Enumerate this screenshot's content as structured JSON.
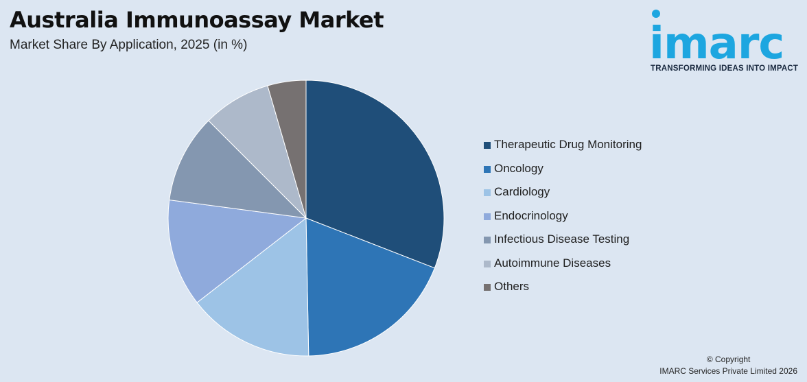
{
  "header": {
    "title": "Australia Immunoassay Market",
    "subtitle": "Market Share By Application, 2025 (in %)"
  },
  "logo": {
    "wordmark": "imarc",
    "tagline": "TRANSFORMING IDEAS INTO IMPACT",
    "color": "#1da6e0"
  },
  "chart_data": {
    "type": "pie",
    "title": "Australia Immunoassay Market",
    "subtitle": "Market Share By Application, 2025 (in %)",
    "start_angle_deg": 0,
    "direction": "clockwise",
    "legend_position": "right",
    "categories": [
      "Therapeutic Drug Monitoring",
      "Oncology",
      "Cardiology",
      "Endocrinology",
      "Infectious Disease Testing",
      "Autoimmune Diseases",
      "Others"
    ],
    "values": [
      30.9,
      18.8,
      14.8,
      12.6,
      10.4,
      8.0,
      4.5
    ],
    "colors": [
      "#1f4e79",
      "#2e75b6",
      "#9dc3e6",
      "#8faadc",
      "#8497b0",
      "#adb9ca",
      "#767171"
    ]
  },
  "footer": {
    "copyright_line1": "© Copyright",
    "copyright_line2": "IMARC Services Private Limited 2026"
  }
}
